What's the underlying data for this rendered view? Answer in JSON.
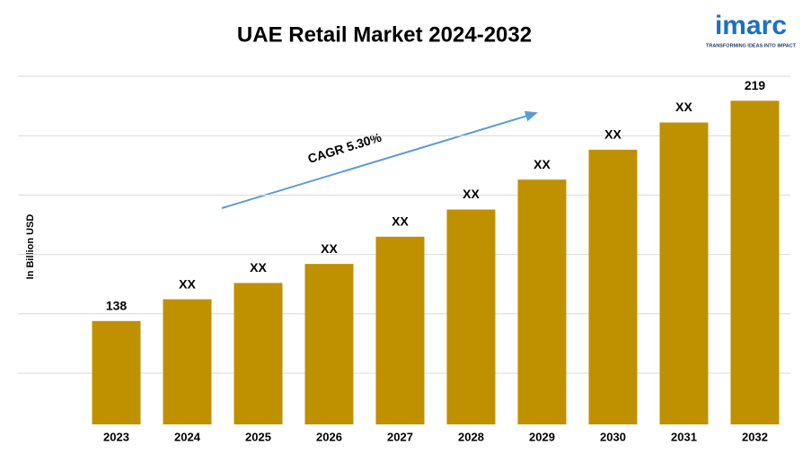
{
  "chart_data": {
    "type": "bar",
    "title": "UAE Retail Market 2024-2032",
    "y_axis_label": "In Billion USD",
    "annotation": "CAGR 5.30%",
    "logo": {
      "name": "imarc",
      "tagline": "TRANSFORMING IDEAS INTO IMPACT"
    },
    "categories": [
      "2023",
      "2024",
      "2025",
      "2026",
      "2027",
      "2028",
      "2029",
      "2030",
      "2031",
      "2032"
    ],
    "values": [
      138,
      146,
      152,
      159,
      169,
      179,
      190,
      201,
      211,
      219
    ],
    "value_labels": [
      "138",
      "XX",
      "XX",
      "XX",
      "XX",
      "XX",
      "XX",
      "XX",
      "XX",
      "219"
    ],
    "color": "#bf9000",
    "ylim": [
      100,
      228
    ],
    "grid": true
  }
}
